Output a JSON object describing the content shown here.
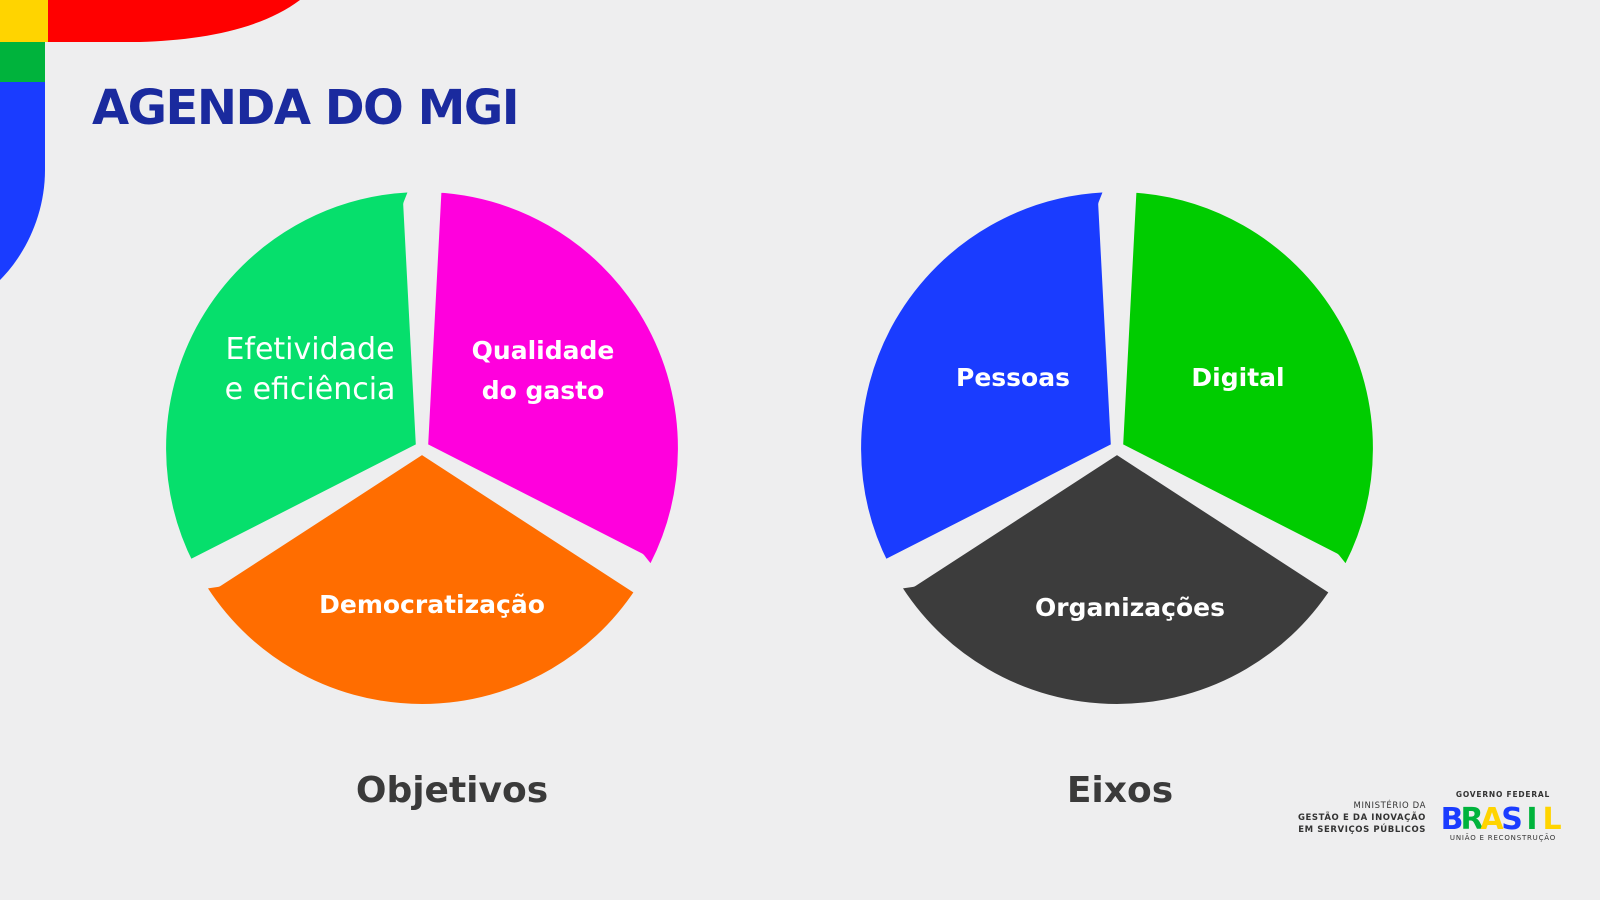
{
  "title": "AGENDA DO MGI",
  "cycles": [
    {
      "caption": "Objetivos",
      "segments": [
        {
          "label_lines": [
            "Efetividade",
            "e eficiência"
          ],
          "color": "#06df6c"
        },
        {
          "label_lines": [
            "Qualidade",
            "do gasto"
          ],
          "color": "#ff00dd"
        },
        {
          "label_lines": [
            "Democratização"
          ],
          "color": "#ff6d00"
        }
      ]
    },
    {
      "caption": "Eixos",
      "segments": [
        {
          "label_lines": [
            "Pessoas"
          ],
          "color": "#1a3cff"
        },
        {
          "label_lines": [
            "Digital"
          ],
          "color": "#00cc00"
        },
        {
          "label_lines": [
            "Organizações"
          ],
          "color": "#3c3c3c"
        }
      ]
    }
  ],
  "footer": {
    "ministry_lines": [
      "MINISTÉRIO DA",
      "GESTÃO E DA INOVAÇÃO",
      "EM SERVIÇOS PÚBLICOS"
    ],
    "gov_top": "GOVERNO FEDERAL",
    "gov_word": "BRASIL",
    "gov_bottom": "UNIÃO E RECONSTRUÇÃO"
  },
  "colors": {
    "title": "#1a2a9e",
    "corner": [
      "#ff0000",
      "#ffd400",
      "#00b33c",
      "#1a3cff"
    ],
    "brasil_letters": [
      "#1a3cff",
      "#00b33c",
      "#ffd400",
      "#1a3cff",
      "#00b33c",
      "#ffd400"
    ]
  }
}
